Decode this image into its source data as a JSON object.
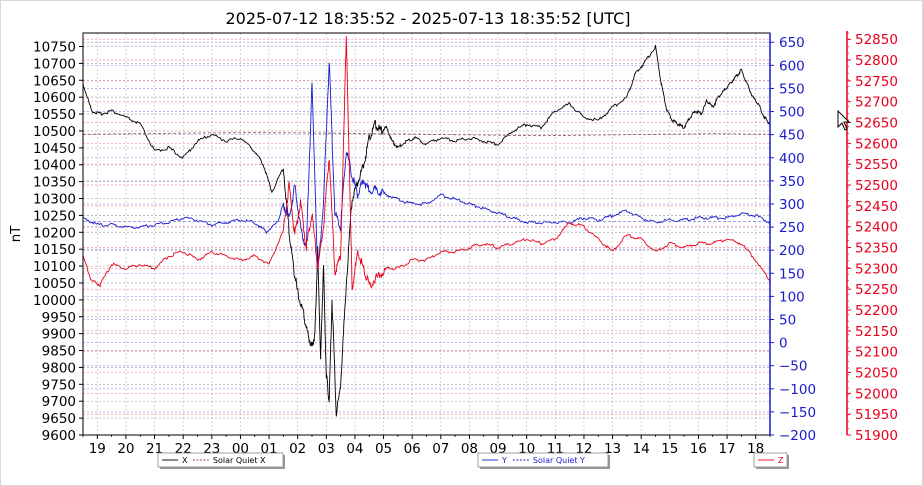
{
  "chart_data": {
    "type": "line",
    "title": "2025-07-12 18:35:52 - 2025-07-13 18:35:52 [UTC]",
    "ylabel": "nT",
    "x_ticks": [
      "19",
      "20",
      "21",
      "22",
      "23",
      "00",
      "01",
      "02",
      "03",
      "04",
      "05",
      "06",
      "07",
      "08",
      "09",
      "10",
      "11",
      "12",
      "13",
      "14",
      "15",
      "16",
      "17",
      "18"
    ],
    "x_range_hours": [
      0,
      24
    ],
    "y_left": {
      "range": [
        9600,
        10790
      ],
      "ticks": [
        10750,
        10700,
        10650,
        10600,
        10550,
        10500,
        10450,
        10400,
        10350,
        10300,
        10250,
        10200,
        10150,
        10100,
        10050,
        10000,
        9950,
        9900,
        9850,
        9800,
        9750,
        9700,
        9650,
        9600
      ],
      "color": "#000000"
    },
    "y_blue": {
      "range": [
        -200,
        670
      ],
      "ticks": [
        650,
        600,
        550,
        500,
        450,
        400,
        350,
        300,
        250,
        200,
        150,
        100,
        50,
        0,
        -50,
        -100,
        -150,
        -200
      ],
      "tick_labels": [
        "650",
        "600",
        "550",
        "500",
        "450",
        "400",
        "350",
        "300",
        "250",
        "200",
        "150",
        "100",
        "50",
        "0",
        "−50",
        "−100",
        "−150",
        "−200"
      ],
      "color": "#1a1acc"
    },
    "y_red": {
      "range": [
        51900,
        52865
      ],
      "ticks": [
        52850,
        52800,
        52750,
        52700,
        52650,
        52600,
        52550,
        52500,
        52450,
        52400,
        52350,
        52300,
        52250,
        52200,
        52150,
        52100,
        52050,
        52000,
        51950,
        51900
      ],
      "color": "#e8001c"
    },
    "grid": true,
    "series": [
      {
        "name": "X",
        "axis": "left",
        "color": "#000000",
        "x": [
          0,
          0.3,
          0.6,
          1,
          1.5,
          2,
          2.5,
          3,
          3.5,
          4,
          4.5,
          5,
          5.5,
          6,
          6.3,
          6.6,
          7,
          7.2,
          7.35,
          7.5,
          7.7,
          7.85,
          8,
          8.1,
          8.2,
          8.3,
          8.4,
          8.5,
          8.6,
          8.7,
          8.85,
          9,
          9.2,
          9.4,
          9.6,
          9.8,
          10,
          10.2,
          10.4,
          10.6,
          10.8,
          11,
          11.3,
          11.6,
          12,
          12.5,
          13,
          13.5,
          14,
          14.5,
          15,
          15.5,
          16,
          16.5,
          17,
          17.5,
          18,
          18.5,
          19,
          19.3,
          19.6,
          20,
          20.2,
          20.4,
          20.6,
          20.8,
          21,
          21.2,
          21.4,
          21.6,
          21.8,
          22,
          22.2,
          22.4,
          22.6,
          22.8,
          23,
          23.2,
          23.4,
          23.6,
          23.8,
          24
        ],
        "y": [
          10640,
          10560,
          10550,
          10560,
          10540,
          10520,
          10440,
          10450,
          10420,
          10470,
          10490,
          10470,
          10480,
          10440,
          10400,
          10320,
          10390,
          10200,
          10100,
          10020,
          9960,
          9900,
          9860,
          9900,
          10150,
          9820,
          10100,
          9780,
          9700,
          10000,
          9660,
          9750,
          10050,
          10300,
          10350,
          10400,
          10480,
          10520,
          10500,
          10510,
          10470,
          10450,
          10470,
          10480,
          10460,
          10480,
          10470,
          10480,
          10470,
          10460,
          10500,
          10520,
          10510,
          10560,
          10580,
          10540,
          10530,
          10570,
          10600,
          10670,
          10700,
          10750,
          10640,
          10560,
          10530,
          10520,
          10510,
          10540,
          10560,
          10550,
          10590,
          10570,
          10600,
          10620,
          10640,
          10660,
          10680,
          10640,
          10600,
          10580,
          10540,
          10520
        ]
      },
      {
        "name": "Solar Quiet X",
        "axis": "left",
        "color": "#8a5050",
        "x": [
          0,
          2,
          4,
          6,
          8,
          10,
          12,
          14,
          16,
          18,
          20,
          22,
          24
        ],
        "y": [
          10490,
          10492,
          10494,
          10495,
          10494,
          10492,
          10490,
          10488,
          10486,
          10488,
          10490,
          10492,
          10490
        ]
      },
      {
        "name": "Y",
        "axis": "blue",
        "color": "#1a1acc",
        "x": [
          0,
          0.5,
          1,
          1.5,
          2,
          2.5,
          3,
          3.5,
          4,
          4.5,
          5,
          5.5,
          6,
          6.4,
          6.8,
          7,
          7.2,
          7.4,
          7.6,
          7.8,
          8,
          8.2,
          8.4,
          8.6,
          8.8,
          9,
          9.2,
          9.4,
          9.6,
          9.8,
          10,
          10.3,
          10.6,
          11,
          11.5,
          12,
          12.5,
          13,
          13.5,
          14,
          14.5,
          15,
          15.5,
          16,
          16.5,
          17,
          17.5,
          18,
          18.5,
          19,
          19.5,
          20,
          20.5,
          21,
          21.5,
          22,
          22.5,
          23,
          23.5,
          24
        ],
        "y": [
          270,
          255,
          255,
          250,
          250,
          255,
          260,
          270,
          265,
          255,
          260,
          265,
          260,
          240,
          260,
          300,
          270,
          340,
          250,
          200,
          560,
          150,
          300,
          610,
          280,
          250,
          420,
          360,
          320,
          350,
          330,
          330,
          320,
          310,
          300,
          300,
          320,
          310,
          300,
          290,
          280,
          270,
          260,
          260,
          260,
          260,
          270,
          265,
          275,
          285,
          270,
          260,
          265,
          265,
          270,
          270,
          270,
          280,
          275,
          260
        ]
      },
      {
        "name": "Solar Quiet Y",
        "axis": "blue",
        "color": "#8080e0",
        "x": [
          0,
          2,
          4,
          6,
          8,
          10,
          12,
          14,
          16,
          18,
          20,
          22,
          24
        ],
        "y": [
          262,
          262,
          262,
          262,
          262,
          262,
          262,
          262,
          262,
          262,
          262,
          262,
          262
        ]
      },
      {
        "name": "Z",
        "axis": "red",
        "color": "#e8001c",
        "x": [
          0,
          0.3,
          0.6,
          1,
          1.5,
          2,
          2.5,
          3,
          3.5,
          4,
          4.5,
          5,
          5.5,
          6,
          6.5,
          7,
          7.2,
          7.4,
          7.6,
          7.8,
          8,
          8.2,
          8.4,
          8.6,
          8.8,
          9,
          9.2,
          9.4,
          9.6,
          9.8,
          10,
          10.3,
          10.6,
          11,
          11.5,
          12,
          12.5,
          13,
          13.5,
          14,
          14.5,
          15,
          15.5,
          16,
          16.5,
          17,
          17.5,
          18,
          18.5,
          19,
          19.5,
          20,
          20.5,
          21,
          21.5,
          22,
          22.5,
          23,
          23.5,
          24
        ],
        "y": [
          52330,
          52270,
          52260,
          52310,
          52300,
          52310,
          52300,
          52330,
          52340,
          52320,
          52340,
          52330,
          52320,
          52330,
          52310,
          52390,
          52500,
          52380,
          52460,
          52350,
          52430,
          52300,
          52400,
          52570,
          52290,
          52330,
          52860,
          52250,
          52340,
          52300,
          52260,
          52280,
          52300,
          52300,
          52320,
          52320,
          52340,
          52340,
          52350,
          52360,
          52350,
          52360,
          52370,
          52360,
          52370,
          52410,
          52400,
          52370,
          52340,
          52380,
          52370,
          52340,
          52360,
          52350,
          52360,
          52360,
          52370,
          52360,
          52320,
          52270
        ]
      }
    ],
    "legends": [
      {
        "entries": [
          {
            "label": "X",
            "color": "#000000",
            "dash": false
          },
          {
            "label": "Solar Quiet X",
            "color": "#8a5050",
            "dash": true
          }
        ]
      },
      {
        "entries": [
          {
            "label": "Y",
            "color": "#1a1acc",
            "dash": false
          },
          {
            "label": "Solar Quiet Y",
            "color": "#1a1acc",
            "dash": true
          }
        ]
      },
      {
        "entries": [
          {
            "label": "Z",
            "color": "#e8001c",
            "dash": false
          }
        ]
      }
    ]
  }
}
